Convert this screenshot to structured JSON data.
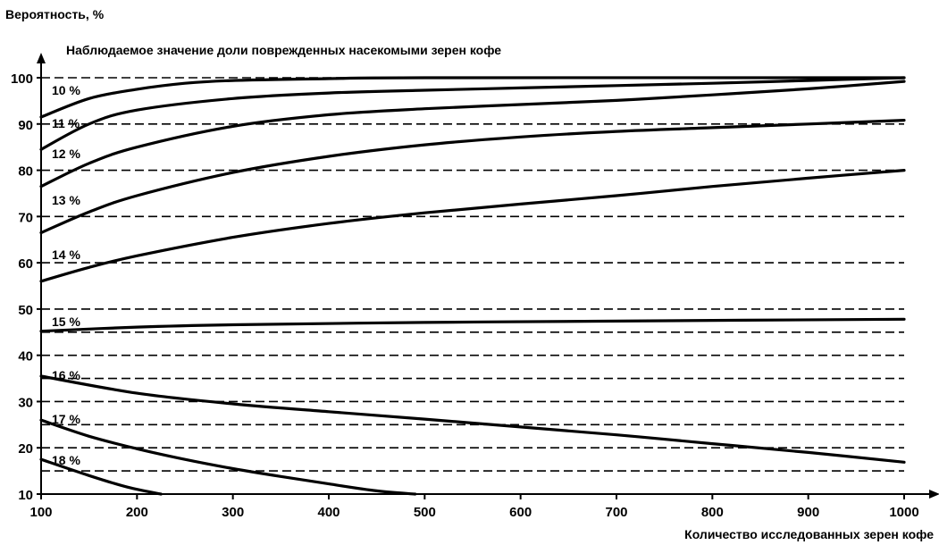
{
  "chart_data": {
    "type": "line",
    "title": "",
    "ylabel": "Вероятность, %",
    "xlabel": "Количество исследованных зерен кофе",
    "series_caption": "Наблюдаемое значение доли поврежденных насекомыми зерен кофе",
    "xlim": [
      100,
      1000
    ],
    "ylim": [
      10,
      100
    ],
    "x_ticks": [
      100,
      200,
      300,
      400,
      500,
      600,
      700,
      800,
      900,
      1000
    ],
    "y_ticks": [
      10,
      20,
      30,
      40,
      50,
      60,
      70,
      80,
      90,
      100
    ],
    "grid": "dashed-horizontal",
    "series": [
      {
        "name": "10 %",
        "points": [
          [
            100,
            91.5
          ],
          [
            150,
            95.5
          ],
          [
            200,
            97.5
          ],
          [
            250,
            98.8
          ],
          [
            300,
            99.4
          ],
          [
            400,
            99.8
          ],
          [
            500,
            100
          ],
          [
            1000,
            100
          ]
        ]
      },
      {
        "name": "11 %",
        "points": [
          [
            100,
            84.5
          ],
          [
            150,
            90
          ],
          [
            200,
            93
          ],
          [
            300,
            95.5
          ],
          [
            400,
            96.7
          ],
          [
            500,
            97.3
          ],
          [
            600,
            97.8
          ],
          [
            700,
            98.3
          ],
          [
            800,
            98.8
          ],
          [
            900,
            99.4
          ],
          [
            1000,
            100
          ]
        ]
      },
      {
        "name": "12 %",
        "points": [
          [
            100,
            76.5
          ],
          [
            150,
            81.5
          ],
          [
            200,
            85
          ],
          [
            300,
            89.5
          ],
          [
            400,
            92
          ],
          [
            500,
            93.3
          ],
          [
            600,
            94.2
          ],
          [
            700,
            95.1
          ],
          [
            800,
            96.3
          ],
          [
            900,
            97.6
          ],
          [
            1000,
            99.2
          ]
        ]
      },
      {
        "name": "13 %",
        "points": [
          [
            100,
            66.5
          ],
          [
            150,
            71
          ],
          [
            200,
            74.5
          ],
          [
            300,
            79.5
          ],
          [
            400,
            83
          ],
          [
            500,
            85.5
          ],
          [
            600,
            87.2
          ],
          [
            700,
            88.4
          ],
          [
            800,
            89.2
          ],
          [
            900,
            90
          ],
          [
            1000,
            90.8
          ]
        ]
      },
      {
        "name": "14 %",
        "points": [
          [
            100,
            56
          ],
          [
            150,
            59
          ],
          [
            200,
            61.5
          ],
          [
            300,
            65.5
          ],
          [
            400,
            68.5
          ],
          [
            500,
            70.8
          ],
          [
            600,
            72.7
          ],
          [
            700,
            74.5
          ],
          [
            800,
            76.5
          ],
          [
            900,
            78.3
          ],
          [
            1000,
            80
          ]
        ]
      },
      {
        "name": "15 %",
        "points": [
          [
            100,
            45.2
          ],
          [
            200,
            46.1
          ],
          [
            300,
            46.6
          ],
          [
            500,
            47.1
          ],
          [
            700,
            47.4
          ],
          [
            1000,
            47.8
          ]
        ]
      },
      {
        "name": "16 %",
        "points": [
          [
            100,
            35.5
          ],
          [
            200,
            31.8
          ],
          [
            300,
            29.5
          ],
          [
            400,
            27.8
          ],
          [
            500,
            26.2
          ],
          [
            600,
            24.5
          ],
          [
            700,
            22.8
          ],
          [
            800,
            20.9
          ],
          [
            900,
            19
          ],
          [
            1000,
            16.9
          ]
        ]
      },
      {
        "name": "17 %",
        "points": [
          [
            100,
            26
          ],
          [
            150,
            22.5
          ],
          [
            200,
            19.8
          ],
          [
            250,
            17.5
          ],
          [
            300,
            15.5
          ],
          [
            350,
            13.8
          ],
          [
            400,
            12.2
          ],
          [
            450,
            10.7
          ],
          [
            490,
            10
          ]
        ]
      },
      {
        "name": "18 %",
        "points": [
          [
            100,
            17.5
          ],
          [
            150,
            14
          ],
          [
            190,
            11.5
          ],
          [
            225,
            10
          ]
        ]
      }
    ]
  }
}
